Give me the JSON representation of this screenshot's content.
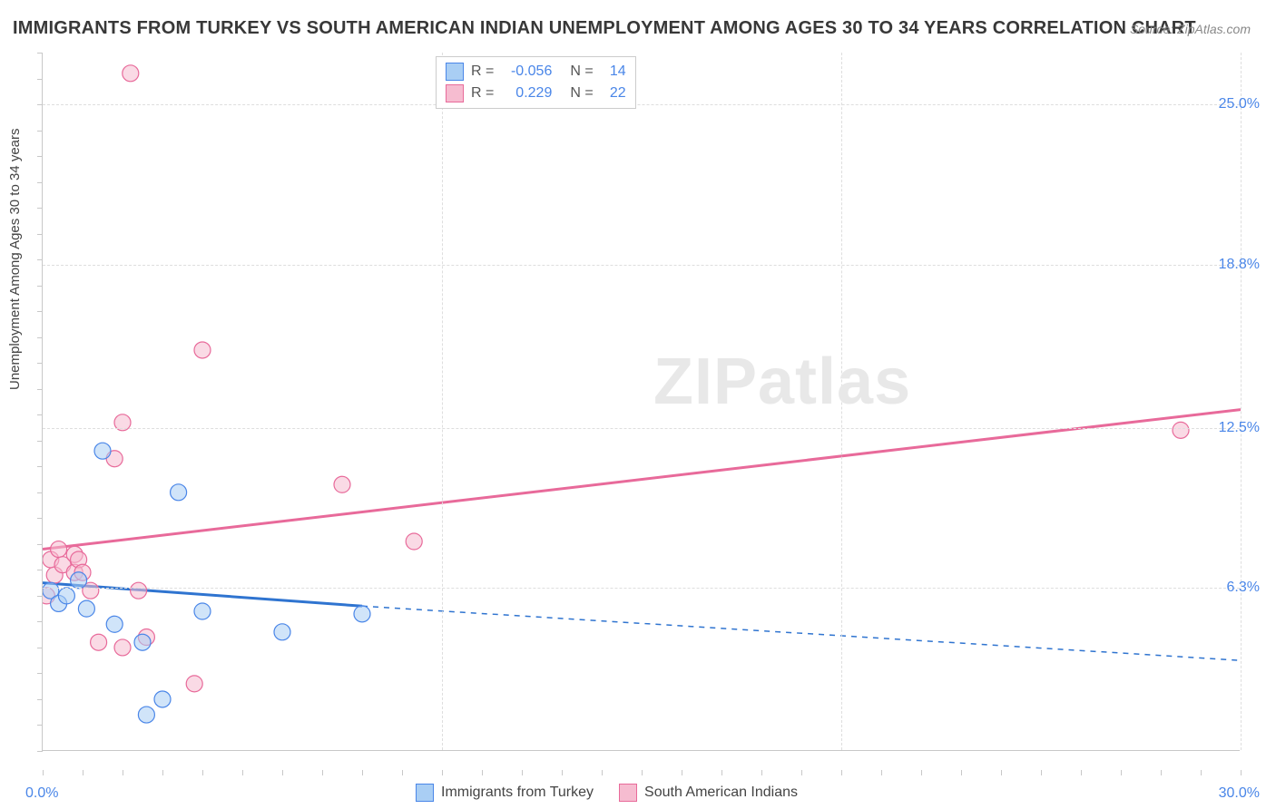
{
  "title": "IMMIGRANTS FROM TURKEY VS SOUTH AMERICAN INDIAN UNEMPLOYMENT AMONG AGES 30 TO 34 YEARS CORRELATION CHART",
  "source": "Source: ZipAtlas.com",
  "watermark_zip": "ZIP",
  "watermark_atlas": "atlas",
  "ylabel": "Unemployment Among Ages 30 to 34 years",
  "chart": {
    "type": "scatter-with-regression",
    "xlim": [
      0,
      30
    ],
    "ylim": [
      0,
      27
    ],
    "xticks_major": [
      0,
      10,
      20,
      30
    ],
    "yticks": [
      6.3,
      12.5,
      18.8,
      25.0
    ],
    "ytick_labels": [
      "6.3%",
      "12.5%",
      "18.8%",
      "25.0%"
    ],
    "xtick_left_label": "0.0%",
    "xtick_right_label": "30.0%",
    "grid_color": "#dedede",
    "axis_color": "#c8c8c8",
    "series": [
      {
        "name": "Immigrants from Turkey",
        "label": "Immigrants from Turkey",
        "R": "-0.056",
        "N": "14",
        "fill": "#a9cef4",
        "stroke": "#4a86e8",
        "trend_color": "#2f74d0",
        "trend": {
          "x1": 0,
          "y1": 6.5,
          "x2": 8.0,
          "y2": 5.6,
          "extend_to": 30,
          "y_extend": 3.5
        },
        "points": [
          {
            "x": 0.2,
            "y": 6.2
          },
          {
            "x": 0.4,
            "y": 5.7
          },
          {
            "x": 0.9,
            "y": 6.6
          },
          {
            "x": 0.6,
            "y": 6.0
          },
          {
            "x": 1.1,
            "y": 5.5
          },
          {
            "x": 1.5,
            "y": 11.6
          },
          {
            "x": 1.8,
            "y": 4.9
          },
          {
            "x": 2.5,
            "y": 4.2
          },
          {
            "x": 2.6,
            "y": 1.4
          },
          {
            "x": 3.0,
            "y": 2.0
          },
          {
            "x": 3.4,
            "y": 10.0
          },
          {
            "x": 4.0,
            "y": 5.4
          },
          {
            "x": 6.0,
            "y": 4.6
          },
          {
            "x": 8.0,
            "y": 5.3
          }
        ]
      },
      {
        "name": "South American Indians",
        "label": "South American Indians",
        "R": "0.229",
        "N": "22",
        "fill": "#f6bcd0",
        "stroke": "#e86a9a",
        "trend_color": "#e86a9a",
        "trend": {
          "x1": 0,
          "y1": 7.8,
          "x2": 30,
          "y2": 13.2
        },
        "points": [
          {
            "x": 0.1,
            "y": 6.0
          },
          {
            "x": 0.2,
            "y": 7.4
          },
          {
            "x": 0.3,
            "y": 6.8
          },
          {
            "x": 0.4,
            "y": 7.8
          },
          {
            "x": 0.5,
            "y": 7.2
          },
          {
            "x": 0.8,
            "y": 7.6
          },
          {
            "x": 0.8,
            "y": 6.9
          },
          {
            "x": 0.9,
            "y": 7.4
          },
          {
            "x": 1.0,
            "y": 6.9
          },
          {
            "x": 1.2,
            "y": 6.2
          },
          {
            "x": 1.4,
            "y": 4.2
          },
          {
            "x": 1.8,
            "y": 11.3
          },
          {
            "x": 2.0,
            "y": 4.0
          },
          {
            "x": 2.0,
            "y": 12.7
          },
          {
            "x": 2.2,
            "y": 26.2
          },
          {
            "x": 2.4,
            "y": 6.2
          },
          {
            "x": 2.6,
            "y": 4.4
          },
          {
            "x": 3.8,
            "y": 2.6
          },
          {
            "x": 4.0,
            "y": 15.5
          },
          {
            "x": 7.5,
            "y": 10.3
          },
          {
            "x": 9.3,
            "y": 8.1
          },
          {
            "x": 28.5,
            "y": 12.4
          }
        ]
      }
    ]
  },
  "legend_bottom": [
    "Immigrants from Turkey",
    "South American Indians"
  ]
}
